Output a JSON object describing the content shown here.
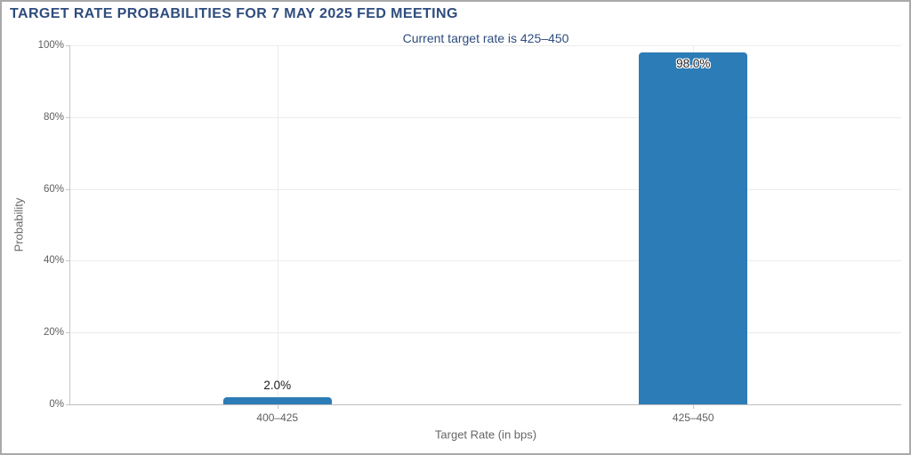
{
  "header": {
    "title": "TARGET RATE PROBABILITIES FOR 7 MAY 2025 FED MEETING",
    "subtitle": "Current target rate is 425–450"
  },
  "colors": {
    "title_text": "#2e4c7d",
    "bar": "#2c7cb7",
    "gridline": "#ececec",
    "axis_line": "#c6c6c6",
    "axis_line_bottom": "#bdbdbd",
    "tick_label": "#5f5f5f",
    "axis_title": "#666666",
    "data_label": "#1c1c1c",
    "frame_border": "#a9a9a9"
  },
  "chart_data": {
    "type": "bar",
    "title": "TARGET RATE PROBABILITIES FOR 7 MAY 2025 FED MEETING",
    "subtitle": "Current target rate is 425–450",
    "categories": [
      "400–425",
      "425–450"
    ],
    "values": [
      2.0,
      98.0
    ],
    "value_labels": [
      "2.0%",
      "98.0%"
    ],
    "xlabel": "Target Rate (in bps)",
    "ylabel": "Probability",
    "ylim": [
      0,
      100
    ],
    "yticks": [
      0,
      20,
      40,
      60,
      80,
      100
    ],
    "ytick_labels": [
      "0%",
      "20%",
      "40%",
      "60%",
      "80%",
      "100%"
    ],
    "grid": true,
    "legend": "none"
  }
}
